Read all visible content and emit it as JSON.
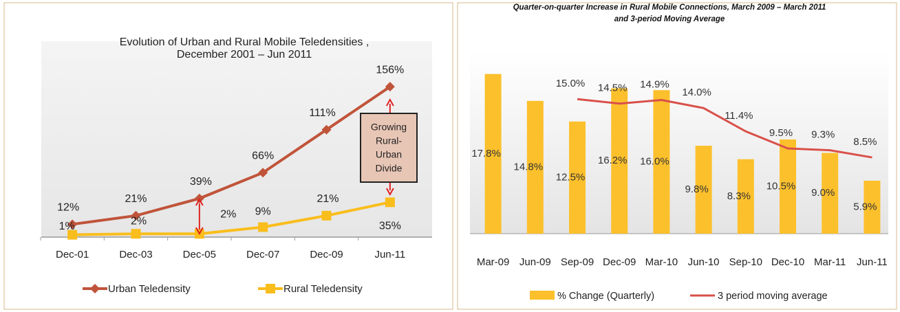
{
  "chart_data": [
    {
      "type": "line",
      "title": [
        "Evolution of Urban and Rural Mobile   Teledensities ,",
        "December 2001  – Jun 2011"
      ],
      "categories": [
        "Dec-01",
        "Dec-03",
        "Dec-05",
        "Dec-07",
        "Dec-09",
        "Jun-11"
      ],
      "series": [
        {
          "name": "Urban Teledensity",
          "color": "#c0543a",
          "marker": "diamond",
          "values": [
            12,
            21,
            39,
            66,
            111,
            156
          ],
          "value_labels": [
            "12%",
            "21%",
            "39%",
            "66%",
            "111%",
            "156%"
          ]
        },
        {
          "name": "Rural Teledensity",
          "color": "#f9bd1c",
          "marker": "square",
          "values": [
            1,
            2,
            2,
            9,
            21,
            35
          ],
          "value_labels": [
            "1%",
            "2%",
            "2%",
            "9%",
            "21%",
            "35%"
          ]
        }
      ],
      "ylim": [
        0,
        200
      ],
      "annotation": [
        "Growing",
        "Rural-",
        "Urban",
        "Divide"
      ],
      "legend": "bottom"
    },
    {
      "type": "bar",
      "title": [
        "Quarter-on-quarter Increase in Rural Mobile Connections, March 2009 – March 2011",
        "and 3-period Moving Average"
      ],
      "categories": [
        "Mar-09",
        "Jun-09",
        "Sep-09",
        "Dec-09",
        "Mar-10",
        "Jun-10",
        "Sep-10",
        "Dec-10",
        "Mar-11",
        "Jun-11"
      ],
      "series": [
        {
          "name": "% Change (Quarterly)",
          "type": "bar",
          "color": "#fcc02c",
          "values": [
            17.8,
            14.8,
            12.5,
            16.2,
            16.0,
            9.8,
            8.3,
            10.5,
            9.0,
            5.9
          ],
          "value_labels": [
            "17.8%",
            "14.8%",
            "12.5%",
            "16.2%",
            "16.0%",
            "9.8%",
            "8.3%",
            "10.5%",
            "9.0%",
            "5.9%"
          ]
        },
        {
          "name": "3 period moving average",
          "type": "line",
          "color": "#d9504a",
          "values": [
            null,
            null,
            15.0,
            14.5,
            14.9,
            14.0,
            11.4,
            9.5,
            9.3,
            8.5
          ],
          "value_labels": [
            null,
            null,
            "15.0%",
            "14.5%",
            "14.9%",
            "14.0%",
            "11.4%",
            "9.5%",
            "9.3%",
            "8.5%"
          ]
        }
      ],
      "ylim": [
        0,
        19
      ],
      "legend": "bottom"
    }
  ]
}
